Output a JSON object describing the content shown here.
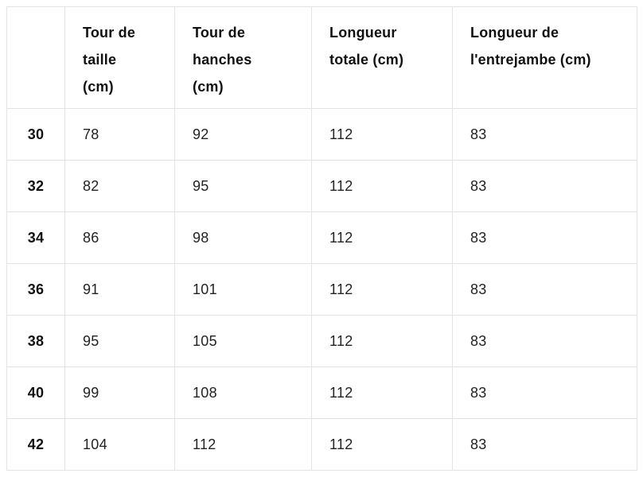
{
  "size_chart": {
    "columns": [
      "",
      "Tour de\ntaille\n(cm)",
      "Tour de\nhanches\n(cm)",
      "Longueur\ntotale (cm)",
      "Longueur de\nl'entrejambe (cm)"
    ],
    "rows": [
      {
        "size": "30",
        "values": [
          "78",
          "92",
          "112",
          "83"
        ]
      },
      {
        "size": "32",
        "values": [
          "82",
          "95",
          "112",
          "83"
        ]
      },
      {
        "size": "34",
        "values": [
          "86",
          "98",
          "112",
          "83"
        ]
      },
      {
        "size": "36",
        "values": [
          "91",
          "101",
          "112",
          "83"
        ]
      },
      {
        "size": "38",
        "values": [
          "95",
          "105",
          "112",
          "83"
        ]
      },
      {
        "size": "40",
        "values": [
          "99",
          "108",
          "112",
          "83"
        ]
      },
      {
        "size": "42",
        "values": [
          "104",
          "112",
          "112",
          "83"
        ]
      }
    ],
    "colors": {
      "border": "#e3e3e3",
      "header_text": "#111111",
      "cell_text": "#232323",
      "background": "#ffffff"
    }
  }
}
